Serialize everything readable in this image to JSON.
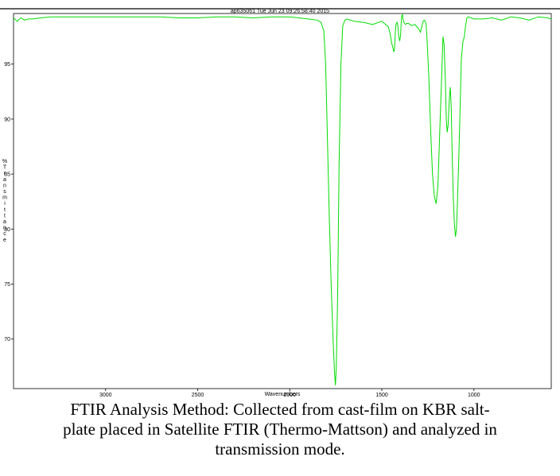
{
  "header": {
    "text": "ap635061   Tue Jun 23 09:26:58:40 2015"
  },
  "caption": {
    "lines": [
      "FTIR Analysis Method: Collected from cast-film on KBR salt-",
      "plate placed in Satellite FTIR (Thermo-Mattson) and analyzed in",
      "transmission mode."
    ]
  },
  "chart_data": {
    "type": "line",
    "title": "",
    "xlabel": "Wavenumbers",
    "ylabel": "% Transmittance",
    "ylabel_chars": [
      "%",
      "T",
      "r",
      "a",
      "n",
      "s",
      "m",
      "i",
      "t",
      "t",
      "a",
      "n",
      "c",
      "e"
    ],
    "xlim": [
      3500,
      580
    ],
    "ylim": [
      65.5,
      99.6
    ],
    "x_ticks": [
      3000,
      2500,
      2000,
      1500,
      1000
    ],
    "y_ticks": [
      70,
      75,
      80,
      85,
      90,
      95
    ],
    "grid": false,
    "line_color": "#00dd00",
    "series": [
      {
        "x": [
          3500,
          3480,
          3460,
          3440,
          3420,
          3400,
          3350,
          3300,
          3200,
          3100,
          3000,
          2900,
          2800,
          2700,
          2600,
          2500,
          2400,
          2300,
          2200,
          2100,
          2000,
          1950,
          1900,
          1850,
          1830,
          1815,
          1805,
          1795,
          1785,
          1775,
          1765,
          1757,
          1752,
          1747,
          1740,
          1732,
          1722,
          1712,
          1700,
          1690,
          1650,
          1600,
          1550,
          1500,
          1480,
          1465,
          1455,
          1448,
          1440,
          1435,
          1431,
          1427,
          1423,
          1418,
          1413,
          1408,
          1403,
          1398,
          1395,
          1392,
          1388,
          1384,
          1380,
          1376,
          1372,
          1365,
          1355,
          1340,
          1320,
          1300,
          1290,
          1280,
          1275,
          1270,
          1265,
          1260,
          1255,
          1245,
          1235,
          1225,
          1215,
          1205,
          1195,
          1185,
          1175,
          1168,
          1162,
          1155,
          1150,
          1145,
          1140,
          1133,
          1128,
          1123,
          1118,
          1112,
          1106,
          1100,
          1095,
          1090,
          1083,
          1075,
          1068,
          1060,
          1052,
          1045,
          1038,
          1030,
          1000,
          950,
          900,
          850,
          800,
          750,
          700,
          650,
          600,
          580
        ],
        "y": [
          99.2,
          98.9,
          99.2,
          99.0,
          99.1,
          99.1,
          99.2,
          99.3,
          99.3,
          99.3,
          99.3,
          99.3,
          99.3,
          99.3,
          99.2,
          99.2,
          99.3,
          99.3,
          99.2,
          99.3,
          99.3,
          99.2,
          99.1,
          99.0,
          98.8,
          98.0,
          95.0,
          88.0,
          81.0,
          75.0,
          70.0,
          67.0,
          65.8,
          67.5,
          74.0,
          86.0,
          95.0,
          98.5,
          99.0,
          99.1,
          98.9,
          98.8,
          98.6,
          98.9,
          98.6,
          98.4,
          97.8,
          97.0,
          96.5,
          96.1,
          96.4,
          97.8,
          98.6,
          98.8,
          98.5,
          97.5,
          97.1,
          97.6,
          98.7,
          99.4,
          99.5,
          99.0,
          98.8,
          98.7,
          98.6,
          98.7,
          98.7,
          98.5,
          98.6,
          98.2,
          97.9,
          98.6,
          98.9,
          99.0,
          98.9,
          98.7,
          97.5,
          94.0,
          89.0,
          85.0,
          83.0,
          82.3,
          84.0,
          89.0,
          94.0,
          97.5,
          96.8,
          93.5,
          90.0,
          88.8,
          89.5,
          92.0,
          92.9,
          91.0,
          87.0,
          83.0,
          80.5,
          79.3,
          80.0,
          82.0,
          86.0,
          91.0,
          95.5,
          97.0,
          97.5,
          98.5,
          99.2,
          99.3,
          99.1,
          99.1,
          99.2,
          99.0,
          99.3,
          99.2,
          99.0,
          99.3,
          99.2,
          99.1
        ]
      }
    ]
  }
}
